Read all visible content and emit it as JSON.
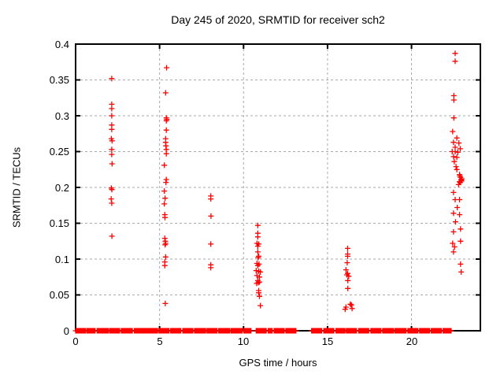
{
  "chart_data": {
    "type": "scatter",
    "title": "Day 245 of 2020, SRMTID for receiver sch2",
    "xlabel": "GPS time / hours",
    "ylabel": "SRMTID / TECUs",
    "xlim": [
      0,
      24.1
    ],
    "ylim": [
      0,
      0.4
    ],
    "x_ticks": [
      0,
      5,
      10,
      15,
      20
    ],
    "x_tick_labels": [
      "0",
      "5",
      "10",
      "15",
      "20"
    ],
    "y_ticks": [
      0,
      0.05,
      0.1,
      0.15,
      0.2,
      0.25,
      0.3,
      0.35,
      0.4
    ],
    "y_tick_labels": [
      "0",
      "0.05",
      "0.1",
      "0.15",
      "0.2",
      "0.25",
      "0.3",
      "0.35",
      "0.4"
    ],
    "grid": true,
    "legend_position": "none",
    "marker": "plus",
    "marker_color": "#ff0000",
    "grid_color": "#aaaaaa",
    "border_color": "#000000",
    "background_color": "#ffffff",
    "series": [
      {
        "name": "SRMTID",
        "points": [
          [
            2.15,
            0.352
          ],
          [
            2.15,
            0.316
          ],
          [
            2.15,
            0.31
          ],
          [
            2.15,
            0.3
          ],
          [
            2.15,
            0.287
          ],
          [
            2.15,
            0.281
          ],
          [
            2.13,
            0.268
          ],
          [
            2.17,
            0.265
          ],
          [
            2.15,
            0.253
          ],
          [
            2.15,
            0.246
          ],
          [
            2.17,
            0.233
          ],
          [
            2.13,
            0.199
          ],
          [
            2.16,
            0.197
          ],
          [
            2.12,
            0.184
          ],
          [
            2.15,
            0.178
          ],
          [
            2.16,
            0.132
          ],
          [
            5.42,
            0.367
          ],
          [
            5.36,
            0.332
          ],
          [
            5.4,
            0.297
          ],
          [
            5.43,
            0.295
          ],
          [
            5.4,
            0.293
          ],
          [
            5.4,
            0.28
          ],
          [
            5.36,
            0.268
          ],
          [
            5.36,
            0.263
          ],
          [
            5.38,
            0.258
          ],
          [
            5.4,
            0.253
          ],
          [
            5.4,
            0.247
          ],
          [
            5.28,
            0.231
          ],
          [
            5.4,
            0.211
          ],
          [
            5.38,
            0.207
          ],
          [
            5.28,
            0.195
          ],
          [
            5.33,
            0.185
          ],
          [
            5.28,
            0.177
          ],
          [
            5.31,
            0.162
          ],
          [
            5.32,
            0.158
          ],
          [
            5.31,
            0.129
          ],
          [
            5.34,
            0.125
          ],
          [
            5.36,
            0.122
          ],
          [
            5.33,
            0.12
          ],
          [
            5.36,
            0.103
          ],
          [
            5.31,
            0.096
          ],
          [
            5.31,
            0.091
          ],
          [
            5.34,
            0.038
          ],
          [
            8.05,
            0.188
          ],
          [
            8.05,
            0.184
          ],
          [
            8.06,
            0.16
          ],
          [
            8.05,
            0.121
          ],
          [
            8.05,
            0.092
          ],
          [
            8.05,
            0.088
          ],
          [
            10.85,
            0.147
          ],
          [
            10.85,
            0.136
          ],
          [
            10.85,
            0.131
          ],
          [
            10.8,
            0.122
          ],
          [
            10.9,
            0.121
          ],
          [
            10.85,
            0.118
          ],
          [
            10.85,
            0.11
          ],
          [
            10.9,
            0.104
          ],
          [
            10.87,
            0.102
          ],
          [
            10.8,
            0.094
          ],
          [
            10.92,
            0.093
          ],
          [
            10.85,
            0.091
          ],
          [
            10.75,
            0.084
          ],
          [
            10.9,
            0.083
          ],
          [
            11.0,
            0.082
          ],
          [
            10.8,
            0.077
          ],
          [
            10.95,
            0.075
          ],
          [
            10.85,
            0.07
          ],
          [
            10.95,
            0.068
          ],
          [
            10.88,
            0.067
          ],
          [
            10.78,
            0.066
          ],
          [
            10.9,
            0.056
          ],
          [
            10.9,
            0.053
          ],
          [
            10.95,
            0.048
          ],
          [
            11.0,
            0.035
          ],
          [
            16.2,
            0.115
          ],
          [
            16.2,
            0.107
          ],
          [
            16.2,
            0.104
          ],
          [
            16.17,
            0.095
          ],
          [
            16.1,
            0.085
          ],
          [
            16.2,
            0.08
          ],
          [
            16.15,
            0.078
          ],
          [
            16.26,
            0.076
          ],
          [
            16.21,
            0.07
          ],
          [
            16.21,
            0.059
          ],
          [
            16.36,
            0.037
          ],
          [
            16.42,
            0.036
          ],
          [
            16.1,
            0.033
          ],
          [
            16.46,
            0.031
          ],
          [
            16.05,
            0.03
          ],
          [
            22.6,
            0.387
          ],
          [
            22.6,
            0.376
          ],
          [
            22.52,
            0.328
          ],
          [
            22.52,
            0.322
          ],
          [
            22.52,
            0.297
          ],
          [
            22.45,
            0.278
          ],
          [
            22.7,
            0.269
          ],
          [
            22.5,
            0.263
          ],
          [
            22.82,
            0.262
          ],
          [
            22.6,
            0.256
          ],
          [
            22.9,
            0.254
          ],
          [
            22.42,
            0.25
          ],
          [
            22.6,
            0.25
          ],
          [
            22.76,
            0.249
          ],
          [
            22.5,
            0.243
          ],
          [
            22.7,
            0.242
          ],
          [
            22.55,
            0.236
          ],
          [
            22.65,
            0.229
          ],
          [
            22.7,
            0.225
          ],
          [
            22.86,
            0.218
          ],
          [
            22.92,
            0.214
          ],
          [
            23.0,
            0.212
          ],
          [
            22.96,
            0.21
          ],
          [
            22.86,
            0.208
          ],
          [
            22.88,
            0.216
          ],
          [
            22.94,
            0.211
          ],
          [
            22.98,
            0.209
          ],
          [
            22.9,
            0.207
          ],
          [
            22.8,
            0.204
          ],
          [
            22.5,
            0.193
          ],
          [
            22.6,
            0.183
          ],
          [
            22.86,
            0.183
          ],
          [
            22.72,
            0.172
          ],
          [
            22.5,
            0.164
          ],
          [
            22.86,
            0.162
          ],
          [
            22.62,
            0.152
          ],
          [
            22.92,
            0.142
          ],
          [
            22.5,
            0.138
          ],
          [
            22.92,
            0.125
          ],
          [
            22.45,
            0.122
          ],
          [
            22.56,
            0.117
          ],
          [
            22.5,
            0.11
          ],
          [
            22.92,
            0.093
          ],
          [
            22.96,
            0.082
          ]
        ]
      }
    ],
    "baseline_band": {
      "value": 0,
      "segments": [
        [
          0.0,
          0.62
        ],
        [
          0.68,
          1.22
        ],
        [
          1.28,
          1.95
        ],
        [
          2.02,
          2.68
        ],
        [
          2.72,
          3.42
        ],
        [
          3.5,
          4.1
        ],
        [
          4.16,
          4.9
        ],
        [
          4.96,
          5.6
        ],
        [
          5.66,
          6.3
        ],
        [
          6.38,
          7.02
        ],
        [
          7.08,
          7.75
        ],
        [
          7.82,
          8.45
        ],
        [
          8.52,
          9.2
        ],
        [
          9.26,
          9.95
        ],
        [
          10.02,
          10.45
        ],
        [
          10.75,
          11.4
        ],
        [
          11.47,
          11.75
        ],
        [
          11.82,
          12.45
        ],
        [
          12.52,
          13.15
        ],
        [
          14.05,
          14.7
        ],
        [
          14.78,
          15.42
        ],
        [
          15.5,
          16.05
        ],
        [
          16.12,
          16.75
        ],
        [
          16.85,
          17.5
        ],
        [
          17.58,
          18.2
        ],
        [
          18.28,
          18.95
        ],
        [
          19.02,
          19.7
        ],
        [
          19.78,
          20.4
        ],
        [
          20.48,
          21.1
        ],
        [
          21.18,
          21.8
        ],
        [
          21.88,
          22.4
        ]
      ]
    }
  }
}
